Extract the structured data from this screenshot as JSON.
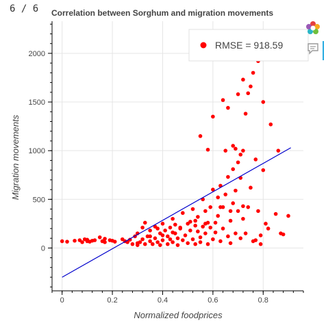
{
  "pager": {
    "text": "6 / 6"
  },
  "toolbar": {
    "logo_icon": "bokeh-logo-icon",
    "hover_icon": "hover-tooltip-icon",
    "accent": "#26aae1"
  },
  "chart_data": {
    "type": "scatter",
    "title": "Correlation between Sorghum and migration movements",
    "xlabel": "Normalized foodprices",
    "ylabel": "Migration movements",
    "xlim": [
      -0.04,
      0.96
    ],
    "ylim": [
      -440,
      2330
    ],
    "xticks": [
      0,
      0.2,
      0.4,
      0.6,
      0.8
    ],
    "yticks": [
      0,
      500,
      1000,
      1500,
      2000
    ],
    "grid": true,
    "legend_position": "top-right",
    "series": [
      {
        "kind": "points",
        "color": "#ff0000",
        "x": [
          0.0,
          0.02,
          0.05,
          0.07,
          0.08,
          0.09,
          0.1,
          0.1,
          0.11,
          0.12,
          0.13,
          0.15,
          0.16,
          0.17,
          0.17,
          0.19,
          0.2,
          0.21,
          0.24,
          0.25,
          0.26,
          0.27,
          0.28,
          0.29,
          0.3,
          0.3,
          0.31,
          0.32,
          0.32,
          0.33,
          0.33,
          0.34,
          0.35,
          0.35,
          0.36,
          0.37,
          0.37,
          0.38,
          0.39,
          0.39,
          0.4,
          0.4,
          0.41,
          0.42,
          0.42,
          0.43,
          0.43,
          0.44,
          0.44,
          0.45,
          0.45,
          0.46,
          0.46,
          0.47,
          0.48,
          0.48,
          0.49,
          0.5,
          0.5,
          0.51,
          0.52,
          0.52,
          0.53,
          0.53,
          0.54,
          0.54,
          0.55,
          0.55,
          0.56,
          0.56,
          0.57,
          0.57,
          0.58,
          0.58,
          0.59,
          0.6,
          0.6,
          0.61,
          0.62,
          0.62,
          0.63,
          0.63,
          0.64,
          0.64,
          0.65,
          0.66,
          0.66,
          0.67,
          0.67,
          0.68,
          0.68,
          0.69,
          0.69,
          0.7,
          0.7,
          0.71,
          0.71,
          0.72,
          0.72,
          0.73,
          0.74,
          0.75,
          0.76,
          0.77,
          0.78,
          0.79,
          0.8,
          0.82,
          0.85,
          0.87,
          0.88,
          0.9,
          0.55,
          0.58,
          0.6,
          0.64,
          0.66,
          0.7,
          0.72,
          0.75,
          0.65,
          0.68,
          0.69,
          0.71,
          0.73,
          0.74,
          0.76,
          0.78,
          0.8,
          0.83,
          0.86,
          0.3,
          0.35,
          0.38,
          0.4,
          0.44,
          0.47,
          0.51,
          0.53,
          0.57,
          0.59,
          0.61,
          0.63,
          0.67,
          0.72,
          0.77,
          0.79,
          0.81
        ],
        "y": [
          70,
          65,
          75,
          80,
          60,
          90,
          70,
          85,
          65,
          75,
          80,
          110,
          70,
          95,
          60,
          80,
          75,
          65,
          90,
          70,
          60,
          85,
          40,
          120,
          30,
          150,
          60,
          210,
          90,
          40,
          260,
          120,
          70,
          180,
          40,
          220,
          100,
          60,
          150,
          30,
          250,
          80,
          180,
          120,
          40,
          210,
          90,
          300,
          60,
          150,
          240,
          100,
          30,
          200,
          360,
          80,
          130,
          50,
          250,
          180,
          400,
          90,
          280,
          40,
          170,
          320,
          110,
          60,
          220,
          500,
          150,
          380,
          40,
          260,
          420,
          90,
          600,
          160,
          520,
          330,
          70,
          640,
          200,
          420,
          550,
          120,
          730,
          280,
          50,
          810,
          460,
          150,
          590,
          380,
          880,
          100,
          720,
          300,
          1000,
          150,
          420,
          620,
          70,
          910,
          380,
          130,
          800,
          200,
          350,
          150,
          140,
          330,
          1150,
          1010,
          1350,
          1520,
          1440,
          1580,
          1730,
          1660,
          1000,
          1050,
          1020,
          960,
          1380,
          1590,
          1800,
          1920,
          1500,
          1270,
          1000,
          50,
          120,
          200,
          130,
          160,
          210,
          270,
          230,
          250,
          210,
          260,
          420,
          380,
          430,
          80,
          40,
          250
        ],
        "legend_label": "RMSE = 918.59"
      },
      {
        "kind": "regression-line",
        "color": "#0000cc",
        "x": [
          0.0,
          0.91
        ],
        "y": [
          -300,
          1030
        ]
      }
    ]
  }
}
